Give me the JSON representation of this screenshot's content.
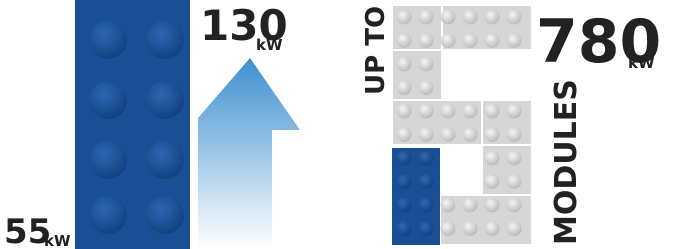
{
  "left": {
    "from": "55",
    "from_unit": "kW",
    "to": "130",
    "to_unit": "kW"
  },
  "right": {
    "prefix": "UP TO",
    "suffix": "MODULES",
    "total": "780",
    "total_unit": "kW"
  }
}
